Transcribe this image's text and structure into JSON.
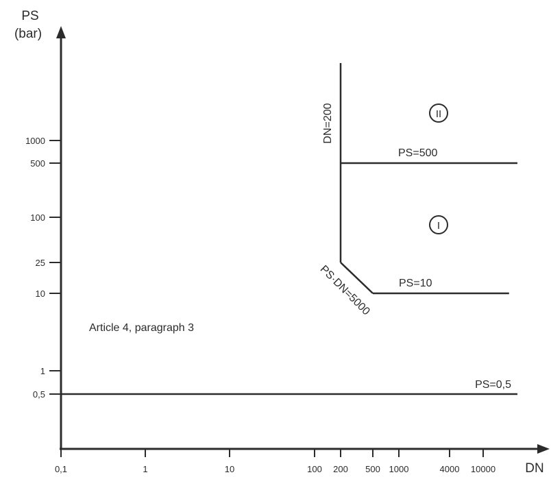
{
  "chart_data": {
    "type": "line",
    "x_axis": {
      "title": "DN",
      "scale": "log",
      "ticks": [
        {
          "value": 0.1,
          "label": "0,1"
        },
        {
          "value": 1,
          "label": "1"
        },
        {
          "value": 10,
          "label": "10"
        },
        {
          "value": 100,
          "label": "100"
        },
        {
          "value": 200,
          "label": "200"
        },
        {
          "value": 500,
          "label": "500"
        },
        {
          "value": 1000,
          "label": "1000"
        },
        {
          "value": 4000,
          "label": "4000"
        },
        {
          "value": 10000,
          "label": "10000"
        }
      ]
    },
    "y_axis": {
      "title": "PS",
      "unit": "(bar)",
      "scale": "log",
      "ticks": [
        {
          "value": 0.5,
          "label": "0,5"
        },
        {
          "value": 1,
          "label": "1"
        },
        {
          "value": 10,
          "label": "10"
        },
        {
          "value": 25,
          "label": "25"
        },
        {
          "value": 100,
          "label": "100"
        },
        {
          "value": 500,
          "label": "500"
        },
        {
          "value": 1000,
          "label": "1000"
        }
      ]
    },
    "lines": [
      {
        "label": "PS=0,5",
        "points": [
          [
            0.1,
            0.5
          ],
          [
            25000,
            0.5
          ]
        ]
      },
      {
        "label": "DN=200",
        "points": [
          [
            200,
            25
          ],
          [
            200,
            10000
          ]
        ]
      },
      {
        "label": "PS=500",
        "points": [
          [
            200,
            500
          ],
          [
            25000,
            500
          ]
        ]
      },
      {
        "label": "PS·DN=5000",
        "points": [
          [
            200,
            25
          ],
          [
            500,
            10
          ]
        ]
      },
      {
        "label": "PS=10",
        "points": [
          [
            500,
            10
          ],
          [
            20000,
            10
          ]
        ]
      }
    ],
    "regions": [
      {
        "label": "I",
        "x": 3000,
        "y": 100
      },
      {
        "label": "II",
        "x": 3000,
        "y": 2500
      }
    ],
    "annotation": "Article 4, paragraph 3",
    "grid": false,
    "legend": "none"
  }
}
